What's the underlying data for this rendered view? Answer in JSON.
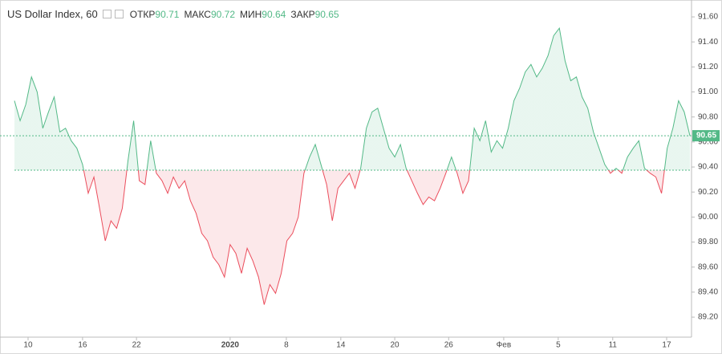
{
  "chart_data": {
    "type": "baseline",
    "title": "US Dollar Index, 60",
    "legend": [
      {
        "label": "ОТКР",
        "value": 90.71
      },
      {
        "label": "МАКС",
        "value": 90.72
      },
      {
        "label": "МИН",
        "value": 90.64
      },
      {
        "label": "ЗАКР",
        "value": 90.65
      }
    ],
    "up_color": "#53b987",
    "down_color": "#eb4d5c",
    "baseline": 90.375,
    "last_value": 90.65,
    "values": [
      90.93,
      90.77,
      90.9,
      91.12,
      91.0,
      90.71,
      90.84,
      90.96,
      90.68,
      90.71,
      90.61,
      90.55,
      90.42,
      90.19,
      90.32,
      90.07,
      89.81,
      89.97,
      89.91,
      90.07,
      90.45,
      90.77,
      90.29,
      90.26,
      90.61,
      90.35,
      90.29,
      90.19,
      90.32,
      90.23,
      90.29,
      90.13,
      90.03,
      89.87,
      89.81,
      89.68,
      89.62,
      89.52,
      89.78,
      89.71,
      89.55,
      89.75,
      89.65,
      89.52,
      89.3,
      89.46,
      89.39,
      89.55,
      89.81,
      89.87,
      90.0,
      90.35,
      90.48,
      90.58,
      90.42,
      90.26,
      89.97,
      90.23,
      90.29,
      90.35,
      90.23,
      90.39,
      90.71,
      90.84,
      90.87,
      90.71,
      90.55,
      90.48,
      90.58,
      90.39,
      90.29,
      90.19,
      90.1,
      90.16,
      90.13,
      90.23,
      90.35,
      90.48,
      90.35,
      90.19,
      90.29,
      90.71,
      90.61,
      90.77,
      90.52,
      90.61,
      90.55,
      90.71,
      90.93,
      91.03,
      91.16,
      91.22,
      91.12,
      91.19,
      91.29,
      91.45,
      91.51,
      91.25,
      91.09,
      91.12,
      90.96,
      90.87,
      90.68,
      90.55,
      90.42,
      90.35,
      90.39,
      90.35,
      90.48,
      90.55,
      90.61,
      90.39,
      90.35,
      90.32,
      90.19,
      90.55,
      90.71,
      90.93,
      90.84,
      90.65
    ],
    "xlim": [
      0,
      119
    ],
    "xticks": [
      {
        "value": 2.4,
        "label": "10"
      },
      {
        "value": 12.0,
        "label": "16"
      },
      {
        "value": 21.5,
        "label": "22"
      },
      {
        "value": 38.0,
        "label": "2020"
      },
      {
        "value": 47.9,
        "label": "8"
      },
      {
        "value": 57.5,
        "label": "14"
      },
      {
        "value": 67.0,
        "label": "20"
      },
      {
        "value": 76.5,
        "label": "26"
      },
      {
        "value": 86.2,
        "label": "Фев"
      },
      {
        "value": 95.8,
        "label": "5"
      },
      {
        "value": 105.4,
        "label": "11"
      },
      {
        "value": 114.9,
        "label": "17"
      }
    ],
    "ylim": [
      89.04,
      91.735
    ],
    "yticks": [
      {
        "value": 89.2,
        "label": "89.20"
      },
      {
        "value": 89.4,
        "label": "89.40"
      },
      {
        "value": 89.6,
        "label": "89.60"
      },
      {
        "value": 89.8,
        "label": "89.80"
      },
      {
        "value": 90.0,
        "label": "90.00"
      },
      {
        "value": 90.2,
        "label": "90.20"
      },
      {
        "value": 90.4,
        "label": "90.40"
      },
      {
        "value": 90.6,
        "label": "90.60"
      },
      {
        "value": 90.8,
        "label": "90.80"
      },
      {
        "value": 91.0,
        "label": "91.00"
      },
      {
        "value": 91.2,
        "label": "91.20"
      },
      {
        "value": 91.4,
        "label": "91.40"
      },
      {
        "value": 91.6,
        "label": "91.60"
      }
    ]
  }
}
